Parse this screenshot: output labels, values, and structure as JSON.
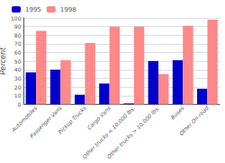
{
  "chart_data": {
    "type": "bar",
    "categories": [
      "Automobiles",
      "Passenger Vans",
      "Pickup Trucks",
      "Cargo Vans",
      "Other trucks < 10,000 lbs.",
      "Other trucks > 10,000 lbs.",
      "Buses",
      "Other On-road"
    ],
    "series": [
      {
        "name": "1995",
        "color": "#0000cc",
        "values": [
          37,
          40,
          11,
          24,
          1,
          50,
          51,
          18
        ]
      },
      {
        "name": "1998",
        "color": "#ff8888",
        "values": [
          85,
          51,
          71,
          90,
          90,
          35,
          91,
          98
        ]
      }
    ],
    "ylabel": "Percent",
    "ylim": [
      0,
      100
    ],
    "yticks": [
      0,
      10,
      20,
      30,
      40,
      50,
      60,
      70,
      80,
      90,
      100
    ],
    "grid": true,
    "legend": "upper left"
  }
}
